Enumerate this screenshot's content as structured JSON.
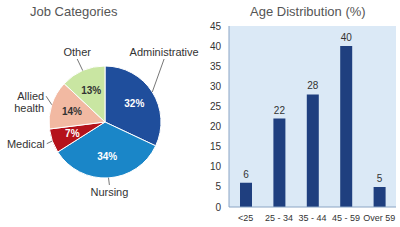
{
  "chart_data": [
    {
      "type": "pie",
      "title": "Job Categories",
      "categories": [
        "Administrative",
        "Nursing",
        "Medical",
        "Allied health",
        "Other"
      ],
      "values": [
        32,
        34,
        7,
        14,
        13
      ],
      "value_labels": [
        "32%",
        "34%",
        "7%",
        "14%",
        "13%"
      ],
      "colors": [
        "#1f4e9c",
        "#1a86c8",
        "#b5121b",
        "#f2b9a2",
        "#c9e6a2"
      ],
      "data_labels": true
    },
    {
      "type": "bar",
      "title": "Age Distribution (%)",
      "categories": [
        "<25",
        "25 - 34",
        "35 - 44",
        "45 - 59",
        "Over 59"
      ],
      "values": [
        6,
        22,
        28,
        40,
        5
      ],
      "color": "#1f3f7f",
      "ylim": [
        0,
        45
      ],
      "yticks": [
        0,
        5,
        10,
        15,
        20,
        25,
        30,
        35,
        40,
        45
      ],
      "grid": false,
      "data_labels": true
    }
  ]
}
